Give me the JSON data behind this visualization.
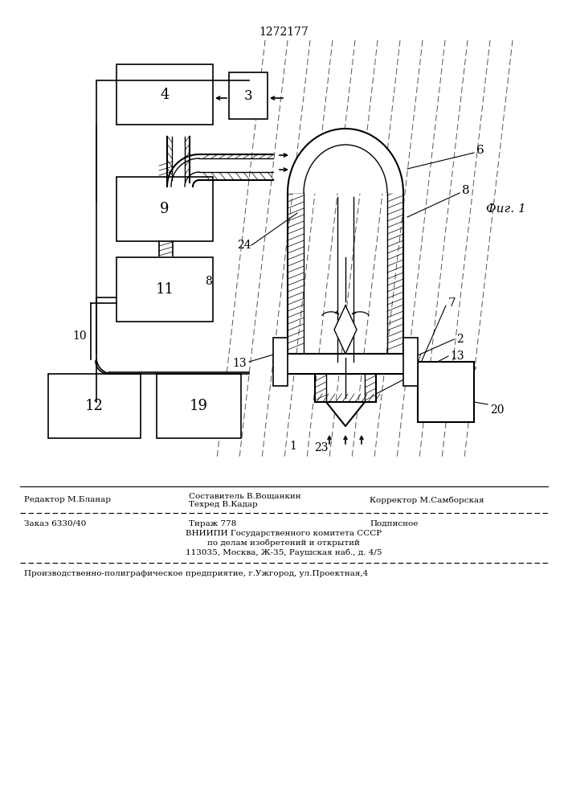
{
  "patent_number": "1272177",
  "fig_label": "Фиг. 1",
  "bg_color": "#ffffff",
  "line_color": "#000000",
  "footer": {
    "editor_line": "Редактор М.Бланар",
    "composer_line": "Составитель В.Вощанкин",
    "techred_line": "Техред В.Кадар",
    "corrector_line": "Корректор М.Самборская",
    "order_line": "Заказ 6330/40",
    "tirazh_line": "Тираж 778",
    "podpisnoe_line": "Подписное",
    "vniip1": "ВНИИПИ Государственного комитета СССР",
    "vniip2": "по делам изобретений и открытий",
    "vniip3": "113035, Москва, Ж-35, Раушская наб., д. 4/5",
    "production": "Производственно-полиграфическое предприятие, г.Ужгород, ул.Проектная,4"
  }
}
